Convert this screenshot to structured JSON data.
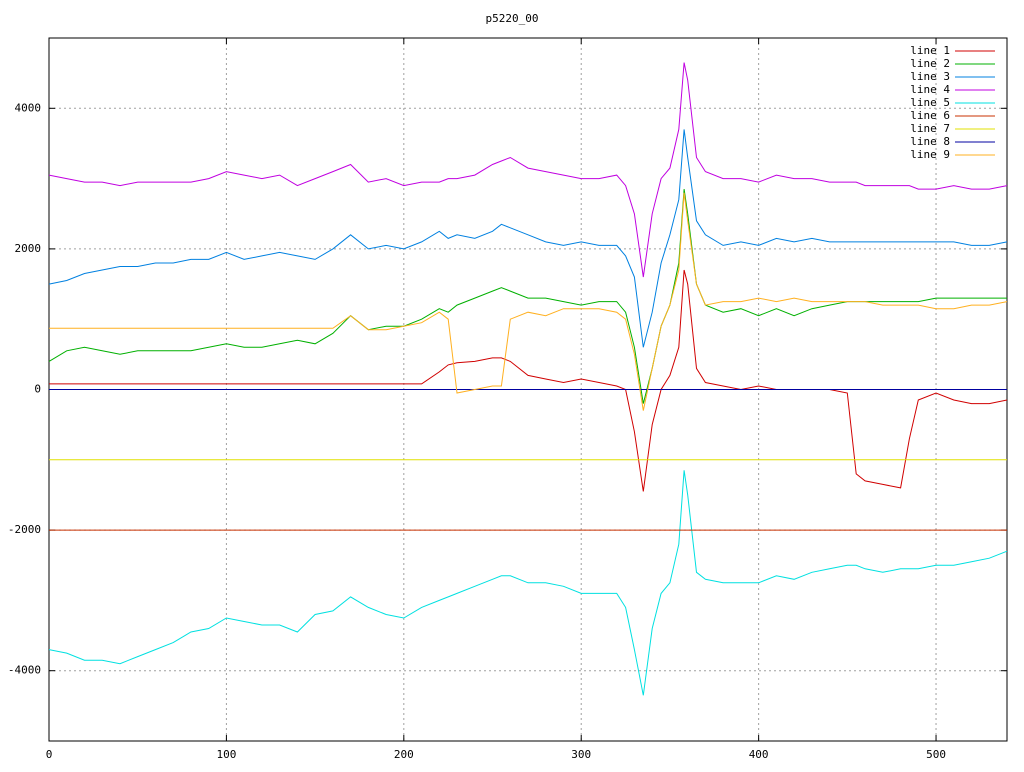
{
  "chart_data": {
    "type": "line",
    "title": "p5220_00",
    "xlim": [
      0,
      540
    ],
    "ylim": [
      -5000,
      5000
    ],
    "xticks": [
      0,
      100,
      200,
      300,
      400,
      500
    ],
    "yticks": [
      -4000,
      -2000,
      0,
      2000,
      4000
    ],
    "grid": true,
    "legend": "upper right",
    "x": [
      0,
      10,
      20,
      30,
      40,
      50,
      60,
      70,
      80,
      90,
      100,
      110,
      120,
      130,
      140,
      150,
      160,
      170,
      180,
      190,
      200,
      210,
      220,
      225,
      230,
      240,
      250,
      255,
      260,
      270,
      280,
      290,
      300,
      310,
      320,
      325,
      330,
      335,
      340,
      345,
      350,
      355,
      358,
      360,
      365,
      370,
      380,
      390,
      400,
      410,
      420,
      430,
      440,
      450,
      455,
      460,
      470,
      480,
      485,
      490,
      500,
      510,
      520,
      530,
      540
    ],
    "series": [
      {
        "name": "line 1",
        "color": "#d00000",
        "values": [
          80,
          80,
          80,
          80,
          80,
          80,
          80,
          80,
          80,
          80,
          80,
          80,
          80,
          80,
          80,
          80,
          80,
          80,
          80,
          80,
          80,
          80,
          250,
          350,
          380,
          400,
          450,
          450,
          400,
          200,
          150,
          100,
          150,
          100,
          50,
          0,
          -600,
          -1450,
          -500,
          0,
          200,
          600,
          1700,
          1500,
          300,
          100,
          50,
          0,
          50,
          0,
          0,
          0,
          0,
          -50,
          -1200,
          -1300,
          -1350,
          -1400,
          -700,
          -150,
          -50,
          -150,
          -200,
          -200,
          -150
        ]
      },
      {
        "name": "line 2",
        "color": "#00b000",
        "values": [
          400,
          550,
          600,
          550,
          500,
          550,
          550,
          550,
          550,
          600,
          650,
          600,
          600,
          650,
          700,
          650,
          800,
          1050,
          850,
          900,
          900,
          1000,
          1150,
          1100,
          1200,
          1300,
          1400,
          1450,
          1400,
          1300,
          1300,
          1250,
          1200,
          1250,
          1250,
          1100,
          600,
          -200,
          300,
          900,
          1200,
          1800,
          2850,
          2500,
          1500,
          1200,
          1100,
          1150,
          1050,
          1150,
          1050,
          1150,
          1200,
          1250,
          1250,
          1250,
          1250,
          1250,
          1250,
          1250,
          1300,
          1300,
          1300,
          1300,
          1300
        ]
      },
      {
        "name": "line 3",
        "color": "#0080e0",
        "values": [
          1500,
          1550,
          1650,
          1700,
          1750,
          1750,
          1800,
          1800,
          1850,
          1850,
          1950,
          1850,
          1900,
          1950,
          1900,
          1850,
          2000,
          2200,
          2000,
          2050,
          2000,
          2100,
          2250,
          2150,
          2200,
          2150,
          2250,
          2350,
          2300,
          2200,
          2100,
          2050,
          2100,
          2050,
          2050,
          1900,
          1600,
          600,
          1100,
          1800,
          2200,
          2700,
          3700,
          3300,
          2400,
          2200,
          2050,
          2100,
          2050,
          2150,
          2100,
          2150,
          2100,
          2100,
          2100,
          2100,
          2100,
          2100,
          2100,
          2100,
          2100,
          2100,
          2050,
          2050,
          2100
        ]
      },
      {
        "name": "line 4",
        "color": "#c000e0",
        "values": [
          3050,
          3000,
          2950,
          2950,
          2900,
          2950,
          2950,
          2950,
          2950,
          3000,
          3100,
          3050,
          3000,
          3050,
          2900,
          3000,
          3100,
          3200,
          2950,
          3000,
          2900,
          2950,
          2950,
          3000,
          3000,
          3050,
          3200,
          3250,
          3300,
          3150,
          3100,
          3050,
          3000,
          3000,
          3050,
          2900,
          2500,
          1600,
          2500,
          3000,
          3150,
          3700,
          4650,
          4400,
          3300,
          3100,
          3000,
          3000,
          2950,
          3050,
          3000,
          3000,
          2950,
          2950,
          2950,
          2900,
          2900,
          2900,
          2900,
          2850,
          2850,
          2900,
          2850,
          2850,
          2900
        ]
      },
      {
        "name": "line 5",
        "color": "#00e0e0",
        "values": [
          -3700,
          -3750,
          -3850,
          -3850,
          -3900,
          -3800,
          -3700,
          -3600,
          -3450,
          -3400,
          -3250,
          -3300,
          -3350,
          -3350,
          -3450,
          -3200,
          -3150,
          -2950,
          -3100,
          -3200,
          -3250,
          -3100,
          -3000,
          -2950,
          -2900,
          -2800,
          -2700,
          -2650,
          -2650,
          -2750,
          -2750,
          -2800,
          -2900,
          -2900,
          -2900,
          -3100,
          -3700,
          -4350,
          -3400,
          -2900,
          -2750,
          -2200,
          -1150,
          -1500,
          -2600,
          -2700,
          -2750,
          -2750,
          -2750,
          -2650,
          -2700,
          -2600,
          -2550,
          -2500,
          -2500,
          -2550,
          -2600,
          -2550,
          -2550,
          -2550,
          -2500,
          -2500,
          -2450,
          -2400,
          -2300
        ]
      },
      {
        "name": "line 6",
        "color": "#c83000",
        "values": [
          -2000,
          -2000,
          -2000,
          -2000,
          -2000,
          -2000,
          -2000,
          -2000,
          -2000,
          -2000,
          -2000,
          -2000,
          -2000,
          -2000,
          -2000,
          -2000,
          -2000,
          -2000,
          -2000,
          -2000,
          -2000,
          -2000,
          -2000,
          -2000,
          -2000,
          -2000,
          -2000,
          -2000,
          -2000,
          -2000,
          -2000,
          -2000,
          -2000,
          -2000,
          -2000,
          -2000,
          -2000,
          -2000,
          -2000,
          -2000,
          -2000,
          -2000,
          -2000,
          -2000,
          -2000,
          -2000,
          -2000,
          -2000,
          -2000,
          -2000,
          -2000,
          -2000,
          -2000,
          -2000,
          -2000,
          -2000,
          -2000,
          -2000,
          -2000,
          -2000,
          -2000,
          -2000,
          -2000,
          -2000,
          -2000
        ]
      },
      {
        "name": "line 7",
        "color": "#e0e000",
        "values": [
          -1000,
          -1000,
          -1000,
          -1000,
          -1000,
          -1000,
          -1000,
          -1000,
          -1000,
          -1000,
          -1000,
          -1000,
          -1000,
          -1000,
          -1000,
          -1000,
          -1000,
          -1000,
          -1000,
          -1000,
          -1000,
          -1000,
          -1000,
          -1000,
          -1000,
          -1000,
          -1000,
          -1000,
          -1000,
          -1000,
          -1000,
          -1000,
          -1000,
          -1000,
          -1000,
          -1000,
          -1000,
          -1000,
          -1000,
          -1000,
          -1000,
          -1000,
          -1000,
          -1000,
          -1000,
          -1000,
          -1000,
          -1000,
          -1000,
          -1000,
          -1000,
          -1000,
          -1000,
          -1000,
          -1000,
          -1000,
          -1000,
          -1000,
          -1000,
          -1000,
          -1000,
          -1000,
          -1000,
          -1000,
          -1000
        ]
      },
      {
        "name": "line 8",
        "color": "#0000a0",
        "values": [
          0,
          0,
          0,
          0,
          0,
          0,
          0,
          0,
          0,
          0,
          0,
          0,
          0,
          0,
          0,
          0,
          0,
          0,
          0,
          0,
          0,
          0,
          0,
          0,
          0,
          0,
          0,
          0,
          0,
          0,
          0,
          0,
          0,
          0,
          0,
          0,
          0,
          0,
          0,
          0,
          0,
          0,
          0,
          0,
          0,
          0,
          0,
          0,
          0,
          0,
          0,
          0,
          0,
          0,
          0,
          0,
          0,
          0,
          0,
          0,
          0,
          0,
          0,
          0,
          0
        ]
      },
      {
        "name": "line 9",
        "color": "#ffb020",
        "values": [
          870,
          870,
          870,
          870,
          870,
          870,
          870,
          870,
          870,
          870,
          870,
          870,
          870,
          870,
          870,
          870,
          870,
          1050,
          850,
          850,
          900,
          950,
          1100,
          1000,
          -50,
          0,
          50,
          50,
          1000,
          1100,
          1050,
          1150,
          1150,
          1150,
          1100,
          1000,
          500,
          -300,
          300,
          900,
          1200,
          1700,
          2800,
          2400,
          1500,
          1200,
          1250,
          1250,
          1300,
          1250,
          1300,
          1250,
          1250,
          1250,
          1250,
          1250,
          1200,
          1200,
          1200,
          1200,
          1150,
          1150,
          1200,
          1200,
          1250
        ]
      }
    ]
  }
}
